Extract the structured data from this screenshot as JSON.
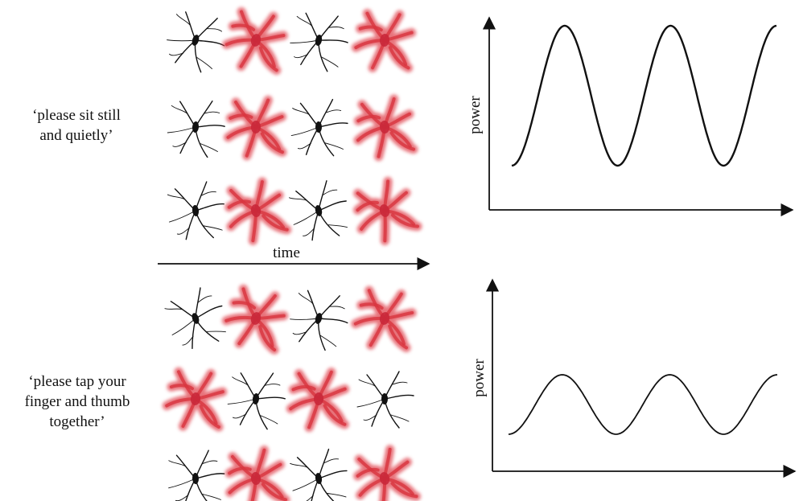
{
  "conditions": [
    {
      "instruction_lines": [
        "‘please sit still",
        "and quietly’"
      ]
    },
    {
      "instruction_lines": [
        "‘please tap your",
        "finger and thumb",
        "together’"
      ]
    }
  ],
  "neurons": {
    "active_color": "#e0454f",
    "inactive_color": "#111111",
    "top_grid": [
      [
        "inactive",
        "active",
        "inactive",
        "active"
      ],
      [
        "inactive",
        "active",
        "inactive",
        "active"
      ],
      [
        "inactive",
        "active",
        "inactive",
        "active"
      ]
    ],
    "bottom_grid": [
      [
        "inactive",
        "active",
        "inactive",
        "active"
      ],
      [
        "active",
        "inactive",
        "active",
        "inactive"
      ],
      [
        "inactive",
        "active",
        "inactive",
        "active"
      ]
    ]
  },
  "time_axis": {
    "label": "time"
  },
  "plots": [
    {
      "ylabel": "power",
      "amplitude": "high",
      "cycles": 2.5
    },
    {
      "ylabel": "power",
      "amplitude": "low",
      "cycles": 2.5
    }
  ]
}
